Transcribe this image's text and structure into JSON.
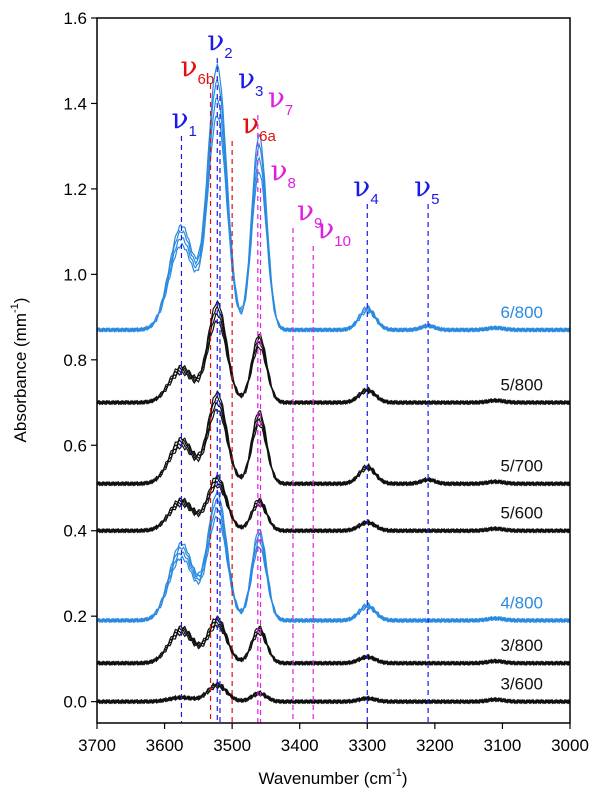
{
  "chart_data": {
    "type": "line",
    "xlabel_main": "Wavenumber (cm",
    "xlabel_sup": "-1",
    "xlabel_end": ")",
    "ylabel_main": "Absorbance (mm",
    "ylabel_sup": "-1",
    "ylabel_end": ")",
    "xlim": [
      3700,
      3000
    ],
    "ylim": [
      -0.05,
      1.6
    ],
    "x_ticks": [
      3700,
      3600,
      3500,
      3400,
      3300,
      3200,
      3100,
      3000
    ],
    "y_ticks": [
      "0.0",
      "0.2",
      "0.4",
      "0.6",
      "0.8",
      "1.0",
      "1.2",
      "1.4",
      "1.6"
    ],
    "y_tick_values": [
      0.0,
      0.2,
      0.4,
      0.6,
      0.8,
      1.0,
      1.2,
      1.4,
      1.6
    ],
    "colors": {
      "black": "#111111",
      "blue_series": "#2a8ae0",
      "blue_marker": "#1a1ae8",
      "red_marker": "#e01010",
      "magenta_marker": "#e020e0"
    },
    "series": [
      {
        "name": "6/800",
        "color": "#2a8ae0",
        "baseline": 0.87,
        "peaks": [
          0.23,
          0.58,
          0.43,
          0.05,
          0.01,
          0.005
        ]
      },
      {
        "name": "5/800",
        "color": "#111111",
        "baseline": 0.7,
        "peaks": [
          0.08,
          0.22,
          0.15,
          0.03,
          0.0,
          0.005
        ]
      },
      {
        "name": "5/700",
        "color": "#111111",
        "baseline": 0.51,
        "peaks": [
          0.1,
          0.2,
          0.16,
          0.04,
          0.01,
          0.005
        ]
      },
      {
        "name": "5/600",
        "color": "#111111",
        "baseline": 0.4,
        "peaks": [
          0.07,
          0.12,
          0.07,
          0.02,
          0.0,
          0.005
        ]
      },
      {
        "name": "4/800",
        "color": "#2a8ae0",
        "baseline": 0.19,
        "peaks": [
          0.17,
          0.28,
          0.2,
          0.035,
          0.0,
          0.005
        ]
      },
      {
        "name": "3/800",
        "color": "#111111",
        "baseline": 0.09,
        "peaks": [
          0.08,
          0.1,
          0.08,
          0.015,
          0.0,
          0.005
        ]
      },
      {
        "name": "3/600",
        "color": "#111111",
        "baseline": 0.0,
        "peaks": [
          0.01,
          0.04,
          0.02,
          0.008,
          0.0,
          0.005
        ]
      }
    ],
    "peak_positions": [
      3575,
      3522,
      3460,
      3300,
      3210,
      3110
    ],
    "markers": [
      {
        "label": "ν",
        "sub": "1",
        "x": 3575,
        "color": "#1a1ae8"
      },
      {
        "label": "ν",
        "sub": "2",
        "x": 3522,
        "color": "#1a1ae8"
      },
      {
        "label": "ν",
        "sub": "3",
        "x": 3518,
        "color": "#1a1ae8"
      },
      {
        "label": "ν",
        "sub": "6b",
        "x": 3532,
        "color": "#e01010"
      },
      {
        "label": "ν",
        "sub": "6a",
        "x": 3500,
        "color": "#e01010"
      },
      {
        "label": "ν",
        "sub": "7",
        "x": 3462,
        "color": "#e020e0"
      },
      {
        "label": "ν",
        "sub": "8",
        "x": 3458,
        "color": "#e020e0"
      },
      {
        "label": "ν",
        "sub": "9",
        "x": 3410,
        "color": "#e020e0"
      },
      {
        "label": "ν",
        "sub": "10",
        "x": 3380,
        "color": "#e020e0"
      },
      {
        "label": "ν",
        "sub": "4",
        "x": 3300,
        "color": "#1a1ae8"
      },
      {
        "label": "ν",
        "sub": "5",
        "x": 3210,
        "color": "#1a1ae8"
      }
    ]
  }
}
